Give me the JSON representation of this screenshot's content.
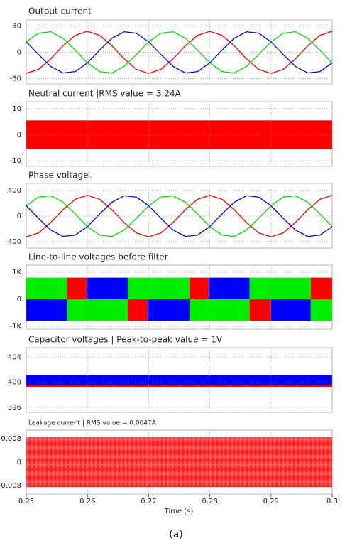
{
  "chart_data": [
    {
      "type": "line",
      "title": "Output current",
      "x": [
        0.25,
        0.252,
        0.254,
        0.256,
        0.258,
        0.26,
        0.262,
        0.264,
        0.266,
        0.268,
        0.27,
        0.272,
        0.274,
        0.276,
        0.278,
        0.28,
        0.282,
        0.284,
        0.286,
        0.288,
        0.29,
        0.292,
        0.294,
        0.296,
        0.298,
        0.3
      ],
      "series": [
        {
          "color": "#ff0000",
          "values": [
            -24,
            -19.4,
            -7.4,
            7.4,
            19.4,
            24,
            19.4,
            7.4,
            -7.4,
            -19.4,
            -24,
            -19.4,
            -7.4,
            7.4,
            19.4,
            24,
            19.4,
            7.4,
            -7.4,
            -19.4,
            -24,
            -19.4,
            -7.4,
            7.4,
            19.4,
            24
          ]
        },
        {
          "color": "#00dd00",
          "values": [
            12,
            21.9,
            23.5,
            16.1,
            2.5,
            -12,
            -21.9,
            -23.5,
            -16.1,
            -2.5,
            12,
            21.9,
            23.5,
            16.1,
            2.5,
            -12,
            -21.9,
            -23.5,
            -16.1,
            -2.5,
            12,
            21.9,
            23.5,
            16.1,
            2.5,
            -12
          ]
        },
        {
          "color": "#0000ff",
          "values": [
            12,
            -2.5,
            -16.1,
            -23.5,
            -21.9,
            -12,
            2.5,
            16.1,
            23.5,
            21.9,
            12,
            -2.5,
            -16.1,
            -23.5,
            -21.9,
            -12,
            2.5,
            16.1,
            23.5,
            21.9,
            12,
            -2.5,
            -16.1,
            -23.5,
            -21.9,
            -12
          ]
        }
      ],
      "ylim": [
        -36,
        37
      ],
      "yticks": [
        30,
        0,
        -30
      ],
      "grid": true
    },
    {
      "type": "band",
      "title": "Neutral current |RMS value = 3.24A",
      "series": [
        {
          "color": "#ff0000",
          "range": [
            -5.5,
            5.5
          ]
        }
      ],
      "ylim": [
        -12.2,
        12.7
      ],
      "yticks": [
        10,
        0,
        -10
      ],
      "grid": true
    },
    {
      "type": "line",
      "title": "Phase voltage",
      "marker_text": "n",
      "x": [
        0.25,
        0.252,
        0.254,
        0.256,
        0.258,
        0.26,
        0.262,
        0.264,
        0.266,
        0.268,
        0.27,
        0.272,
        0.274,
        0.276,
        0.278,
        0.28,
        0.282,
        0.284,
        0.286,
        0.288,
        0.29,
        0.292,
        0.294,
        0.296,
        0.298,
        0.3
      ],
      "series": [
        {
          "color": "#ff0000",
          "values": [
            -325,
            -263,
            -100,
            100,
            263,
            325,
            263,
            100,
            -100,
            -263,
            -325,
            -263,
            -100,
            100,
            263,
            325,
            263,
            100,
            -100,
            -263,
            -325,
            -263,
            -100,
            100,
            263,
            325
          ]
        },
        {
          "color": "#00dd00",
          "values": [
            162,
            297,
            318,
            217,
            34,
            -162,
            -297,
            -318,
            -217,
            -34,
            162,
            297,
            318,
            217,
            34,
            -162,
            -297,
            -318,
            -217,
            -34,
            162,
            297,
            318,
            217,
            34,
            -162
          ]
        },
        {
          "color": "#0000ff",
          "values": [
            162,
            -34,
            -217,
            -318,
            -297,
            -162,
            34,
            217,
            318,
            297,
            162,
            -34,
            -217,
            -318,
            -297,
            -162,
            34,
            217,
            318,
            297,
            162,
            -34,
            -217,
            -318,
            -297,
            -162
          ]
        }
      ],
      "ylim": [
        -500,
        511
      ],
      "yticks": [
        400,
        0,
        -400
      ],
      "grid": true
    },
    {
      "type": "blocks",
      "title": "Line-to-line voltages before filter",
      "blocks": [
        {
          "x": [
            0.25,
            0.2567
          ],
          "value": 800,
          "color": "#00ee00"
        },
        {
          "x": [
            0.2567,
            0.2599
          ],
          "value": 800,
          "color": "#ff0000"
        },
        {
          "x": [
            0.2599,
            0.2666
          ],
          "value": 800,
          "color": "#0000ff"
        },
        {
          "x": [
            0.2666,
            0.2767
          ],
          "value": 800,
          "color": "#00ee00"
        },
        {
          "x": [
            0.2767,
            0.2798
          ],
          "value": 800,
          "color": "#ff0000"
        },
        {
          "x": [
            0.2798,
            0.2865
          ],
          "value": 800,
          "color": "#0000ff"
        },
        {
          "x": [
            0.2865,
            0.2965
          ],
          "value": 800,
          "color": "#00ee00"
        },
        {
          "x": [
            0.2965,
            0.3
          ],
          "value": 800,
          "color": "#ff0000"
        },
        {
          "x": [
            0.25,
            0.2567
          ],
          "value": -800,
          "color": "#0000ff"
        },
        {
          "x": [
            0.2567,
            0.2666
          ],
          "value": -800,
          "color": "#00ee00"
        },
        {
          "x": [
            0.2666,
            0.2698
          ],
          "value": -800,
          "color": "#ff0000"
        },
        {
          "x": [
            0.2698,
            0.2767
          ],
          "value": -800,
          "color": "#0000ff"
        },
        {
          "x": [
            0.2767,
            0.2865
          ],
          "value": -800,
          "color": "#00ee00"
        },
        {
          "x": [
            0.2865,
            0.29
          ],
          "value": -800,
          "color": "#ff0000"
        },
        {
          "x": [
            0.29,
            0.2965
          ],
          "value": -800,
          "color": "#0000ff"
        },
        {
          "x": [
            0.2965,
            0.3
          ],
          "value": -800,
          "color": "#00ee00"
        }
      ],
      "ylim": [
        -1105,
        1263
      ],
      "yticks": [
        {
          "value": 1000,
          "label": "1K"
        },
        0,
        {
          "value": -1000,
          "label": "-1K"
        }
      ],
      "grid": true
    },
    {
      "type": "band",
      "title": "Capacitor voltages | Peak-to-peak value = 1V",
      "series": [
        {
          "color": "#ff0000",
          "range": [
            399.2,
            400.9
          ]
        },
        {
          "color": "#0000ff",
          "range": [
            399.6,
            401.1
          ]
        }
      ],
      "ylim": [
        395.2,
        405.5
      ],
      "yticks": [
        404,
        400,
        396
      ],
      "grid": true
    },
    {
      "type": "band",
      "title": "Leakage current | RMS value = 0.0047A",
      "series": [
        {
          "color": "#ff2020",
          "range": [
            -0.0085,
            0.0085
          ]
        }
      ],
      "ylim": [
        -0.0109,
        0.0109
      ],
      "yticks": [
        0.008,
        0,
        -0.008
      ],
      "grid": true,
      "xlim": [
        0.25,
        0.3
      ],
      "xticks": [
        0.25,
        0.26,
        0.27,
        0.28,
        0.29,
        0.3
      ],
      "xlabel": "Time (s)"
    }
  ],
  "caption": "(a)"
}
